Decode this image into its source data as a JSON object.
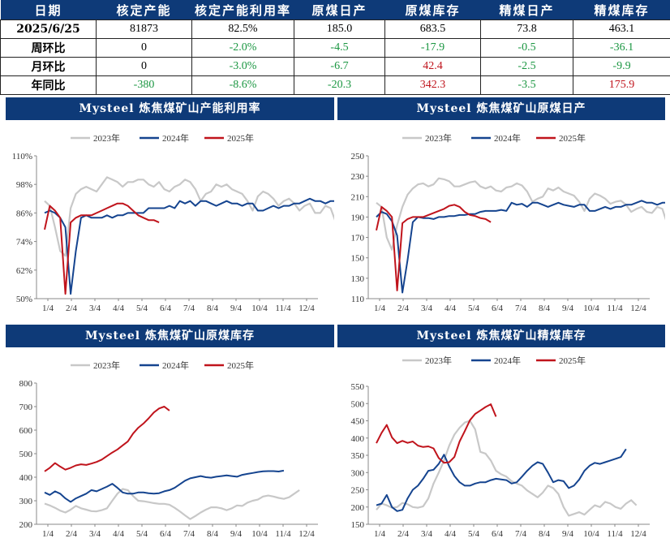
{
  "table": {
    "headers": [
      "日期",
      "核定产能",
      "核定产能利用率",
      "原煤日产",
      "原煤库存",
      "精煤日产",
      "精煤库存"
    ],
    "rows": [
      {
        "label": "2025/6/25",
        "cells": [
          {
            "v": "81873",
            "c": "#000000"
          },
          {
            "v": "82.5%",
            "c": "#000000"
          },
          {
            "v": "185.0",
            "c": "#000000"
          },
          {
            "v": "683.5",
            "c": "#000000"
          },
          {
            "v": "73.8",
            "c": "#000000"
          },
          {
            "v": "463.1",
            "c": "#000000"
          }
        ]
      },
      {
        "label": "周环比",
        "cells": [
          {
            "v": "0",
            "c": "#000000"
          },
          {
            "v": "-2.0%",
            "c": "#1a9641"
          },
          {
            "v": "-4.5",
            "c": "#1a9641"
          },
          {
            "v": "-17.9",
            "c": "#1a9641"
          },
          {
            "v": "-0.5",
            "c": "#1a9641"
          },
          {
            "v": "-36.1",
            "c": "#1a9641"
          }
        ]
      },
      {
        "label": "月环比",
        "cells": [
          {
            "v": "0",
            "c": "#000000"
          },
          {
            "v": "-3.0%",
            "c": "#1a9641"
          },
          {
            "v": "-6.7",
            "c": "#1a9641"
          },
          {
            "v": "42.4",
            "c": "#c0141c"
          },
          {
            "v": "-2.5",
            "c": "#1a9641"
          },
          {
            "v": "-9.9",
            "c": "#1a9641"
          }
        ]
      },
      {
        "label": "年同比",
        "cells": [
          {
            "v": "-380",
            "c": "#1a9641"
          },
          {
            "v": "-8.6%",
            "c": "#1a9641"
          },
          {
            "v": "-20.3",
            "c": "#1a9641"
          },
          {
            "v": "342.3",
            "c": "#c0141c"
          },
          {
            "v": "-3.5",
            "c": "#1a9641"
          },
          {
            "v": "175.9",
            "c": "#c0141c"
          }
        ]
      }
    ]
  },
  "colors": {
    "header_bg": "#0e3a78",
    "y2023": "#c8c8c8",
    "y2024": "#15448f",
    "y2025": "#c0141c"
  },
  "chart_data": [
    {
      "type": "line",
      "title": "Mysteel 炼焦煤矿山产能利用率",
      "ylim": [
        50,
        110
      ],
      "yticks": [
        "50%",
        "62%",
        "74%",
        "86%",
        "98%",
        "110%"
      ],
      "x_ticks": [
        "1/4",
        "2/4",
        "3/4",
        "4/4",
        "5/4",
        "6/4",
        "7/4",
        "8/4",
        "9/4",
        "10/4",
        "11/4",
        "12/4"
      ],
      "series": [
        {
          "name": "2023年",
          "key": "y2023",
          "values": [
            91,
            89,
            80,
            70,
            68,
            88,
            94,
            96,
            97,
            96,
            95,
            98,
            101,
            100,
            99,
            97,
            99,
            99,
            100,
            100,
            98,
            97,
            99,
            96,
            95,
            97,
            98,
            100,
            99,
            96,
            91,
            94,
            95,
            98,
            97,
            98,
            96,
            95,
            94,
            91,
            87,
            93,
            95,
            94,
            92,
            89,
            91,
            92,
            90,
            87,
            89,
            90,
            86,
            86,
            89,
            88,
            82
          ]
        },
        {
          "name": "2024年",
          "key": "y2024",
          "values": [
            86,
            87,
            86,
            84,
            80,
            52,
            70,
            84,
            85,
            84,
            84,
            84,
            85,
            84,
            85,
            85,
            86,
            86,
            86,
            86,
            88,
            88,
            88,
            88,
            89,
            88,
            91,
            90,
            91,
            89,
            91,
            91,
            90,
            89,
            90,
            91,
            90,
            90,
            89,
            90,
            90,
            87,
            87,
            88,
            89,
            88,
            89,
            89,
            90,
            90,
            91,
            92,
            91,
            91,
            90,
            91,
            91,
            90,
            87
          ]
        },
        {
          "name": "2025年",
          "key": "y2025",
          "values": [
            79,
            89,
            87,
            84,
            52,
            82,
            84,
            85,
            85,
            85,
            86,
            87,
            88,
            89,
            90,
            90,
            89,
            87,
            85,
            84,
            83,
            83,
            82
          ]
        }
      ]
    },
    {
      "type": "line",
      "title": "Mysteel 炼焦煤矿山原煤日产",
      "ylim": [
        110,
        250
      ],
      "yticks": [
        "110",
        "130",
        "150",
        "170",
        "190",
        "210",
        "230",
        "250"
      ],
      "x_ticks": [
        "1/4",
        "2/4",
        "3/4",
        "4/4",
        "5/4",
        "6/4",
        "7/4",
        "8/4",
        "9/4",
        "10/4",
        "11/4",
        "12/4"
      ],
      "series": [
        {
          "name": "2023年",
          "key": "y2023",
          "values": [
            204,
            200,
            170,
            158,
            182,
            200,
            212,
            218,
            222,
            223,
            220,
            222,
            228,
            227,
            225,
            220,
            220,
            222,
            224,
            225,
            220,
            218,
            220,
            216,
            215,
            219,
            220,
            223,
            221,
            215,
            205,
            208,
            210,
            218,
            216,
            219,
            215,
            213,
            211,
            205,
            196,
            208,
            213,
            211,
            208,
            203,
            205,
            206,
            202,
            195,
            198,
            200,
            195,
            194,
            200,
            198,
            182
          ]
        },
        {
          "name": "2024年",
          "key": "y2024",
          "values": [
            190,
            195,
            193,
            186,
            172,
            116,
            148,
            185,
            190,
            189,
            189,
            188,
            190,
            190,
            191,
            191,
            192,
            192,
            193,
            193,
            195,
            196,
            196,
            196,
            197,
            196,
            204,
            202,
            203,
            200,
            204,
            204,
            202,
            200,
            202,
            204,
            202,
            201,
            200,
            202,
            202,
            196,
            196,
            198,
            200,
            198,
            200,
            200,
            202,
            202,
            204,
            206,
            204,
            204,
            202,
            204,
            204,
            202,
            195
          ]
        },
        {
          "name": "2025年",
          "key": "y2025",
          "values": [
            177,
            200,
            196,
            190,
            118,
            184,
            188,
            190,
            190,
            190,
            192,
            194,
            196,
            198,
            201,
            202,
            200,
            195,
            192,
            191,
            189,
            188,
            185
          ]
        }
      ]
    },
    {
      "type": "line",
      "title": "Mysteel 炼焦煤矿山原煤库存",
      "ylim": [
        200,
        800
      ],
      "yticks": [
        "200",
        "300",
        "400",
        "500",
        "600",
        "700",
        "800"
      ],
      "x_ticks": [
        "1/4",
        "2/4",
        "3/4",
        "4/4",
        "5/4",
        "6/4",
        "7/4",
        "8/4",
        "9/4",
        "10/4",
        "11/4",
        "12/4"
      ],
      "series": [
        {
          "name": "2023年",
          "key": "y2023",
          "values": [
            288,
            280,
            270,
            258,
            250,
            262,
            278,
            268,
            262,
            256,
            255,
            260,
            268,
            300,
            330,
            350,
            345,
            320,
            300,
            298,
            294,
            290,
            287,
            287,
            283,
            270,
            255,
            238,
            222,
            235,
            250,
            262,
            272,
            272,
            268,
            260,
            268,
            280,
            278,
            292,
            300,
            305,
            318,
            322,
            318,
            312,
            308,
            315,
            330,
            345
          ]
        },
        {
          "name": "2024年",
          "key": "y2024",
          "values": [
            335,
            325,
            340,
            330,
            310,
            295,
            310,
            320,
            330,
            345,
            340,
            350,
            360,
            372,
            355,
            335,
            330,
            330,
            335,
            335,
            332,
            330,
            332,
            340,
            345,
            355,
            370,
            385,
            395,
            400,
            405,
            400,
            398,
            402,
            405,
            408,
            405,
            402,
            410,
            414,
            418,
            422,
            425,
            426,
            426,
            424,
            428
          ]
        },
        {
          "name": "2025年",
          "key": "y2025",
          "values": [
            425,
            440,
            460,
            445,
            432,
            440,
            450,
            455,
            452,
            458,
            465,
            475,
            490,
            505,
            518,
            535,
            552,
            585,
            610,
            628,
            650,
            675,
            692,
            700,
            683
          ]
        }
      ]
    },
    {
      "type": "line",
      "title": "Mysteel 炼焦煤矿山精煤库存",
      "ylim": [
        150,
        550
      ],
      "yticks": [
        "150",
        "200",
        "250",
        "300",
        "350",
        "400",
        "450",
        "500",
        "550"
      ],
      "x_ticks": [
        "1/4",
        "2/4",
        "3/4",
        "4/4",
        "5/4",
        "6/4",
        "7/4",
        "8/4",
        "9/4",
        "10/4",
        "11/4",
        "12/4"
      ],
      "series": [
        {
          "name": "2023年",
          "key": "y2023",
          "values": [
            192,
            210,
            205,
            198,
            200,
            212,
            208,
            200,
            198,
            202,
            225,
            268,
            300,
            335,
            378,
            410,
            430,
            445,
            450,
            425,
            360,
            355,
            335,
            305,
            295,
            288,
            275,
            268,
            262,
            248,
            238,
            228,
            242,
            262,
            255,
            238,
            200,
            175,
            180,
            185,
            178,
            192,
            205,
            200,
            215,
            210,
            200,
            195,
            210,
            220,
            205
          ]
        },
        {
          "name": "2024年",
          "key": "y2024",
          "values": [
            205,
            210,
            235,
            200,
            188,
            192,
            225,
            250,
            262,
            282,
            305,
            308,
            325,
            352,
            318,
            290,
            272,
            262,
            262,
            268,
            272,
            272,
            278,
            282,
            280,
            278,
            268,
            272,
            288,
            305,
            320,
            330,
            325,
            300,
            272,
            278,
            275,
            255,
            262,
            280,
            305,
            320,
            328,
            325,
            330,
            335,
            340,
            345,
            368
          ]
        },
        {
          "name": "2025年",
          "key": "y2025",
          "values": [
            385,
            415,
            438,
            402,
            385,
            392,
            386,
            390,
            378,
            374,
            376,
            370,
            342,
            328,
            330,
            345,
            390,
            420,
            452,
            470,
            480,
            490,
            498,
            462
          ]
        }
      ]
    }
  ]
}
